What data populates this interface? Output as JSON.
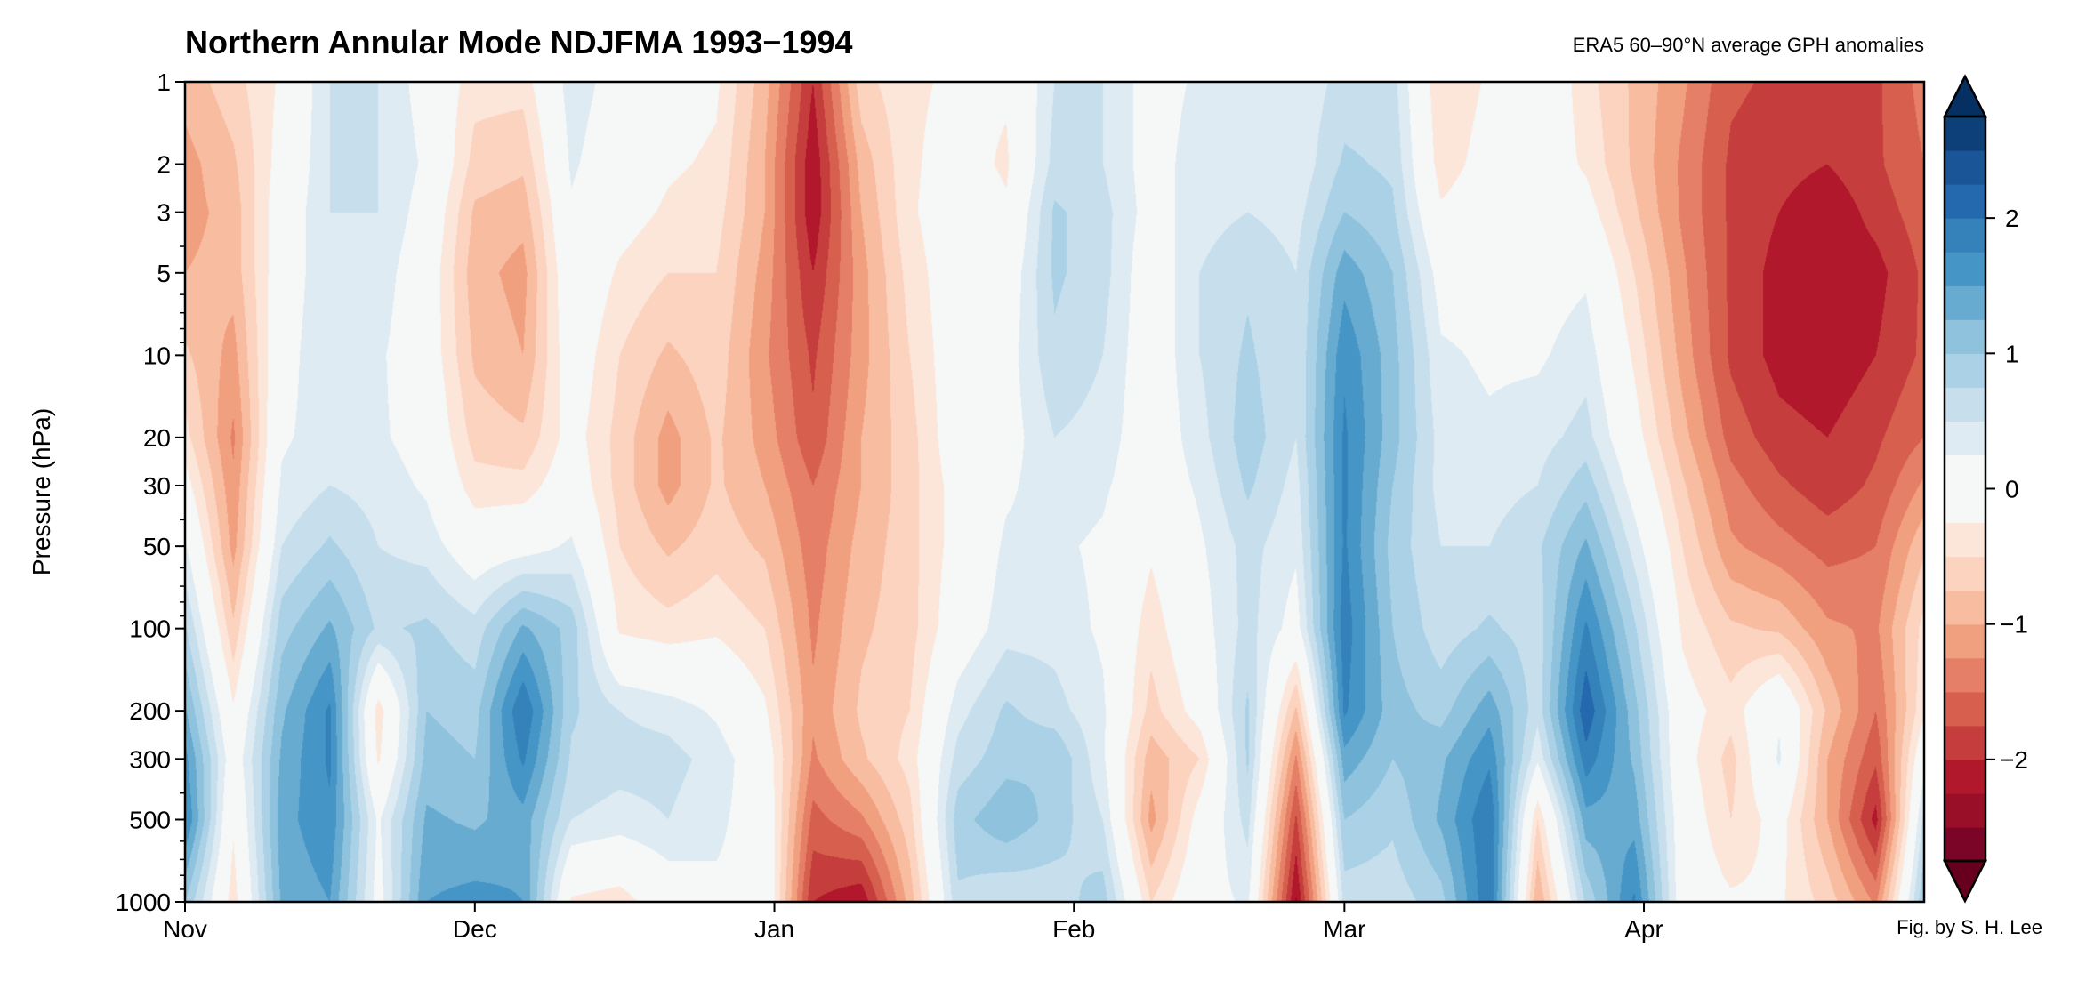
{
  "chart_data": {
    "type": "heatmap",
    "style": "filled-contour",
    "title": "Northern Annular Mode NDJFMA 1993−1994",
    "subtitle": "ERA5 60–90°N average GPH anomalies",
    "credit": "Fig. by S. H. Lee",
    "ylabel": "Pressure (hPa)",
    "xlabel": "",
    "yscale": "log",
    "yinverted": true,
    "ylim": [
      1000,
      1
    ],
    "xlim": [
      "1993-11-01",
      "1994-04-30"
    ],
    "x_ticks": [
      {
        "label": "Nov",
        "date": "1993-11-01"
      },
      {
        "label": "Dec",
        "date": "1993-12-01"
      },
      {
        "label": "Jan",
        "date": "1994-01-01"
      },
      {
        "label": "Feb",
        "date": "1994-02-01"
      },
      {
        "label": "Mar",
        "date": "1994-03-01"
      },
      {
        "label": "Apr",
        "date": "1994-04-01"
      }
    ],
    "y_ticks": [
      1,
      2,
      3,
      5,
      10,
      20,
      30,
      50,
      100,
      200,
      300,
      500,
      1000
    ],
    "y_tick_labels": [
      "1",
      "2",
      "3",
      "5",
      "10",
      "20",
      "30",
      "50",
      "100",
      "200",
      "300",
      "500",
      "1000"
    ],
    "colorbar": {
      "levels_min": -2.75,
      "levels_max": 2.75,
      "level_step": 0.25,
      "neutral_band": [
        -0.25,
        0.25
      ],
      "extend": "both",
      "ticks": [
        2,
        1,
        0,
        -1,
        -2
      ],
      "tick_labels": [
        "2",
        "1",
        "0",
        "−1",
        "−2"
      ],
      "colormap": "RdBu_r",
      "red_bands": [
        "#7b0526",
        "#9a0f28",
        "#b2182b",
        "#c53e3d",
        "#d6604d",
        "#e57f67",
        "#f1a07f",
        "#f8bca1",
        "#fbd3bf",
        "#fce5d9"
      ],
      "neutral_color": "#f6f7f7",
      "blue_bands": [
        "#deebf2",
        "#c7dfed",
        "#abd1e6",
        "#8fc2dd",
        "#68abd0",
        "#4595c6",
        "#3582ba",
        "#2468ad",
        "#1a5697",
        "#0d4079"
      ],
      "extend_low_color": "#67001f",
      "extend_high_color": "#053061"
    },
    "y": [
      1,
      2,
      3,
      5,
      10,
      20,
      30,
      50,
      100,
      200,
      300,
      500,
      1000
    ],
    "x": [
      "1993-11-01",
      "1993-11-06",
      "1993-11-11",
      "1993-11-16",
      "1993-11-21",
      "1993-11-26",
      "1993-12-01",
      "1993-12-06",
      "1993-12-11",
      "1993-12-16",
      "1993-12-21",
      "1993-12-26",
      "1993-12-31",
      "1994-01-05",
      "1994-01-10",
      "1994-01-15",
      "1994-01-20",
      "1994-01-25",
      "1994-01-30",
      "1994-02-04",
      "1994-02-09",
      "1994-02-14",
      "1994-02-19",
      "1994-02-24",
      "1994-03-01",
      "1994-03-06",
      "1994-03-11",
      "1994-03-16",
      "1994-03-21",
      "1994-03-26",
      "1994-03-31",
      "1994-04-05",
      "1994-04-10",
      "1994-04-15",
      "1994-04-20",
      "1994-04-25",
      "1994-04-30"
    ],
    "z_by_x": [
      [
        -0.9,
        -1.1,
        -1.1,
        -1.0,
        -0.7,
        -0.4,
        -0.1,
        0.3,
        0.8,
        1.3,
        1.6,
        1.8,
        1.0
      ],
      [
        -0.6,
        -0.8,
        -0.9,
        -0.9,
        -1.1,
        -1.3,
        -1.2,
        -1.1,
        -0.7,
        -0.2,
        0,
        -0.2,
        -0.4
      ],
      [
        -0.2,
        -0.1,
        0,
        0,
        0.1,
        0.2,
        0.3,
        0.5,
        0.9,
        1.2,
        1.3,
        1.4,
        1.3
      ],
      [
        0.5,
        0.5,
        0.5,
        0.5,
        0.5,
        0.4,
        0.5,
        0.8,
        1.3,
        1.8,
        1.8,
        1.7,
        1.5
      ],
      [
        0.5,
        0.5,
        0.5,
        0.4,
        0.3,
        0.3,
        0.4,
        0.5,
        0.7,
        -0.4,
        -0.3,
        0.2,
        0.1
      ],
      [
        0.1,
        0.2,
        0.1,
        0,
        0,
        0.1,
        0.2,
        0.4,
        0.8,
        1.0,
        1.1,
        1.3,
        1.5
      ],
      [
        -0.4,
        -0.6,
        -0.8,
        -0.9,
        -0.8,
        -0.6,
        -0.4,
        0,
        0.6,
        0.9,
        1.0,
        1.2,
        1.6
      ],
      [
        -0.4,
        -0.7,
        -0.9,
        -1.1,
        -1.0,
        -0.7,
        -0.4,
        0.1,
        1.3,
        2.0,
        1.8,
        1.4,
        1.5
      ],
      [
        0.4,
        0.3,
        0.2,
        0.1,
        0,
        -0.1,
        0,
        0.3,
        0.9,
        0.8,
        0.7,
        0.5,
        -0.3
      ],
      [
        0.1,
        0,
        -0.1,
        -0.3,
        -0.5,
        -0.6,
        -0.6,
        -0.5,
        -0.3,
        0.5,
        0.6,
        0.4,
        -0.4
      ],
      [
        -0.1,
        -0.2,
        -0.3,
        -0.5,
        -0.8,
        -1.1,
        -1.1,
        -0.8,
        -0.4,
        0.4,
        0.6,
        0.5,
        0
      ],
      [
        -0.2,
        -0.3,
        -0.4,
        -0.5,
        -0.6,
        -0.7,
        -0.7,
        -0.6,
        -0.3,
        0.2,
        0.4,
        0.3,
        0.2
      ],
      [
        -0.9,
        -1.0,
        -1.0,
        -1.1,
        -1.2,
        -1.1,
        -1.0,
        -0.8,
        -0.5,
        -0.2,
        0,
        0.1,
        0.2
      ],
      [
        -2.0,
        -2.2,
        -2.2,
        -2.0,
        -1.8,
        -1.7,
        -1.5,
        -1.4,
        -1.3,
        -1.2,
        -1.3,
        -1.6,
        -2.0
      ],
      [
        -0.6,
        -0.9,
        -1.0,
        -1.1,
        -1.1,
        -1.0,
        -1.0,
        -0.9,
        -0.8,
        -0.7,
        -0.8,
        -1.3,
        -2.2
      ],
      [
        -0.3,
        -0.3,
        -0.3,
        -0.4,
        -0.5,
        -0.6,
        -0.6,
        -0.6,
        -0.6,
        -0.5,
        -0.4,
        -0.6,
        -0.9
      ],
      [
        -0.2,
        -0.1,
        0,
        0,
        0,
        0,
        -0.1,
        -0.1,
        0,
        0.4,
        0.6,
        0.9,
        0.7
      ],
      [
        -0.2,
        -0.3,
        -0.2,
        0,
        0.1,
        0.1,
        0.2,
        0.3,
        0.4,
        0.8,
        0.9,
        1.2,
        0.5
      ],
      [
        0.5,
        0.6,
        0.8,
        0.8,
        0.7,
        0.5,
        0.4,
        0.3,
        0.4,
        0.6,
        1.0,
        0.9,
        0.6
      ],
      [
        0.5,
        0.5,
        0.6,
        0.6,
        0.5,
        0.4,
        0.3,
        0.2,
        0.2,
        0.3,
        0.3,
        0.5,
        0.9
      ],
      [
        0.1,
        0.1,
        0.1,
        0,
        0,
        0,
        0,
        -0.2,
        -0.4,
        -0.6,
        -0.9,
        -1.1,
        -0.5
      ],
      [
        0.3,
        0.4,
        0.4,
        0.5,
        0.5,
        0.4,
        0.3,
        0.2,
        0.1,
        -0.1,
        -0.5,
        -0.1,
        0.1
      ],
      [
        0.3,
        0.4,
        0.5,
        0.7,
        0.8,
        0.9,
        0.8,
        0.6,
        0.6,
        0.8,
        0.8,
        0.6,
        0.3
      ],
      [
        0.3,
        0.3,
        0.4,
        0.5,
        0.5,
        0.5,
        0.4,
        0.3,
        0.1,
        -0.8,
        -1.3,
        -1.8,
        -2.3
      ],
      [
        0.6,
        0.8,
        1.0,
        1.4,
        1.7,
        1.8,
        1.8,
        1.8,
        1.9,
        1.8,
        1.4,
        1.0,
        0.6
      ],
      [
        0.6,
        0.7,
        0.8,
        1.0,
        1.1,
        1.1,
        1.0,
        0.9,
        1.0,
        1.1,
        1.0,
        0.8,
        0.6
      ],
      [
        -0.5,
        -0.4,
        -0.2,
        0.1,
        0.3,
        0.4,
        0.4,
        0.5,
        0.6,
        0.9,
        1.2,
        1.3,
        0.9
      ],
      [
        -0.2,
        -0.1,
        0,
        0.1,
        0.2,
        0.3,
        0.4,
        0.5,
        0.8,
        1.4,
        1.7,
        2.0,
        2.0
      ],
      [
        0.1,
        0,
        0,
        0.1,
        0.2,
        0.4,
        0.5,
        0.7,
        0.6,
        0.6,
        0.3,
        -0.5,
        -1.0
      ],
      [
        -0.4,
        -0.3,
        -0.1,
        0.2,
        0.4,
        0.6,
        0.9,
        1.3,
        1.8,
        2.2,
        1.9,
        1.4,
        0.8
      ],
      [
        -0.8,
        -0.8,
        -0.7,
        -0.5,
        -0.3,
        -0.1,
        0.1,
        0.4,
        0.8,
        1.1,
        1.2,
        1.4,
        1.8
      ],
      [
        -1.2,
        -1.3,
        -1.3,
        -1.2,
        -1.1,
        -0.9,
        -0.7,
        -0.5,
        -0.3,
        -0.1,
        -0.1,
        0,
        0
      ],
      [
        -1.7,
        -1.8,
        -1.8,
        -1.8,
        -1.8,
        -1.6,
        -1.4,
        -1.2,
        -0.7,
        -0.4,
        -0.6,
        -0.5,
        -0.2
      ],
      [
        -1.8,
        -1.9,
        -2.0,
        -2.1,
        -2.1,
        -1.9,
        -1.7,
        -1.4,
        -0.8,
        0.2,
        0.3,
        -0.1,
        -0.2
      ],
      [
        -1.9,
        -2.0,
        -2.2,
        -2.2,
        -2.2,
        -2.0,
        -1.9,
        -1.6,
        -1.2,
        -0.8,
        -1.0,
        -1.0,
        -0.6
      ],
      [
        -1.8,
        -1.8,
        -1.9,
        -2.1,
        -2.0,
        -1.8,
        -1.7,
        -1.5,
        -1.3,
        -1.5,
        -1.7,
        -2.1,
        -1.3
      ],
      [
        -1.4,
        -1.5,
        -1.6,
        -1.7,
        -1.7,
        -1.5,
        -1.2,
        -0.8,
        -0.4,
        -0.3,
        0.1,
        0.6,
        1.0
      ]
    ]
  }
}
